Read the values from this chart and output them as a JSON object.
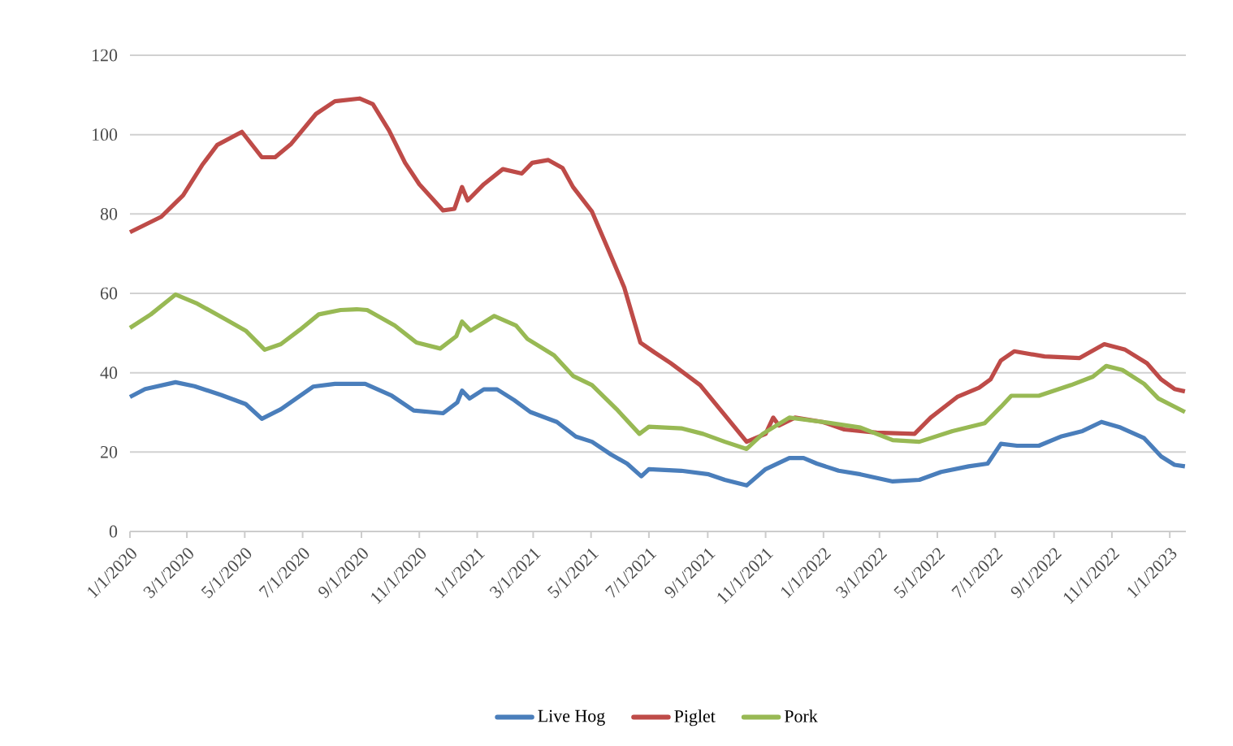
{
  "chart_data": {
    "type": "line",
    "xlim": [
      "2020-01-01",
      "2023-01-18"
    ],
    "ylim": [
      0,
      120
    ],
    "yticks": [
      0,
      20,
      40,
      60,
      80,
      100,
      120
    ],
    "xticks": [
      {
        "value": "2020-01-01",
        "label": "1/1/2020"
      },
      {
        "value": "2020-03-01",
        "label": "3/1/2020"
      },
      {
        "value": "2020-05-01",
        "label": "5/1/2020"
      },
      {
        "value": "2020-07-01",
        "label": "7/1/2020"
      },
      {
        "value": "2020-09-01",
        "label": "9/1/2020"
      },
      {
        "value": "2020-11-01",
        "label": "11/1/2020"
      },
      {
        "value": "2021-01-01",
        "label": "1/1/2021"
      },
      {
        "value": "2021-03-01",
        "label": "3/1/2021"
      },
      {
        "value": "2021-05-01",
        "label": "5/1/2021"
      },
      {
        "value": "2021-07-01",
        "label": "7/1/2021"
      },
      {
        "value": "2021-09-01",
        "label": "9/1/2021"
      },
      {
        "value": "2021-11-01",
        "label": "11/1/2021"
      },
      {
        "value": "2022-01-01",
        "label": "1/1/2022"
      },
      {
        "value": "2022-03-01",
        "label": "3/1/2022"
      },
      {
        "value": "2022-05-01",
        "label": "5/1/2022"
      },
      {
        "value": "2022-07-01",
        "label": "7/1/2022"
      },
      {
        "value": "2022-09-01",
        "label": "9/1/2022"
      },
      {
        "value": "2022-11-01",
        "label": "11/1/2022"
      },
      {
        "value": "2023-01-01",
        "label": "1/1/2023"
      }
    ],
    "grid": "y",
    "legend": "bottom",
    "marker": "none",
    "line_style": "solid",
    "series": [
      {
        "name": "Live Hog",
        "color": "#4a7ebb",
        "x": [
          "2020-01-01",
          "2020-01-17",
          "2020-02-18",
          "2020-03-09",
          "2020-04-06",
          "2020-05-02",
          "2020-05-19",
          "2020-06-08",
          "2020-07-12",
          "2020-08-04",
          "2020-09-05",
          "2020-10-03",
          "2020-10-26",
          "2020-11-26",
          "2020-12-11",
          "2020-12-16",
          "2020-12-24",
          "2021-01-08",
          "2021-01-22",
          "2021-02-09",
          "2021-02-26",
          "2021-03-26",
          "2021-04-15",
          "2021-05-02",
          "2021-05-22",
          "2021-06-08",
          "2021-06-23",
          "2021-07-01",
          "2021-08-04",
          "2021-09-02",
          "2021-09-19",
          "2021-10-12",
          "2021-11-01",
          "2021-11-26",
          "2021-12-11",
          "2021-12-25",
          "2022-01-17",
          "2022-02-09",
          "2022-03-15",
          "2022-04-12",
          "2022-05-05",
          "2022-06-03",
          "2022-06-23",
          "2022-07-07",
          "2022-07-24",
          "2022-08-16",
          "2022-09-08",
          "2022-10-01",
          "2022-10-21",
          "2022-11-10",
          "2022-12-05",
          "2022-12-23",
          "2023-01-06",
          "2023-01-17"
        ],
        "values": [
          33.9,
          35.9,
          37.6,
          36.6,
          34.4,
          32.1,
          28.4,
          30.8,
          36.5,
          37.2,
          37.2,
          34.2,
          30.5,
          29.8,
          32.5,
          35.5,
          33.5,
          35.8,
          35.8,
          33.1,
          30.1,
          27.6,
          23.9,
          22.6,
          19.4,
          17.1,
          13.9,
          15.7,
          15.3,
          14.4,
          13.0,
          11.6,
          15.7,
          18.5,
          18.5,
          17.1,
          15.3,
          14.4,
          12.6,
          13.0,
          15.0,
          16.4,
          17.1,
          22.1,
          21.6,
          21.6,
          23.9,
          25.3,
          27.6,
          26.2,
          23.5,
          18.9,
          16.8,
          16.4
        ]
      },
      {
        "name": "Piglet",
        "color": "#be4b48",
        "x": [
          "2020-01-01",
          "2020-02-03",
          "2020-02-26",
          "2020-03-17",
          "2020-04-02",
          "2020-04-28",
          "2020-05-19",
          "2020-06-02",
          "2020-06-19",
          "2020-07-15",
          "2020-08-04",
          "2020-08-30",
          "2020-09-13",
          "2020-09-30",
          "2020-10-17",
          "2020-11-01",
          "2020-11-26",
          "2020-12-08",
          "2020-12-16",
          "2020-12-22",
          "2021-01-08",
          "2021-01-28",
          "2021-02-17",
          "2021-02-28",
          "2021-03-17",
          "2021-04-01",
          "2021-04-12",
          "2021-05-02",
          "2021-05-19",
          "2021-06-05",
          "2021-06-22",
          "2021-07-07",
          "2021-07-24",
          "2021-08-24",
          "2021-10-12",
          "2021-11-01",
          "2021-11-09",
          "2021-11-15",
          "2021-12-02",
          "2021-12-31",
          "2022-01-23",
          "2022-02-26",
          "2022-04-07",
          "2022-04-24",
          "2022-05-22",
          "2022-06-14",
          "2022-06-26",
          "2022-07-07",
          "2022-07-21",
          "2022-08-22",
          "2022-09-28",
          "2022-10-24",
          "2022-11-15",
          "2022-12-08",
          "2022-12-23",
          "2023-01-06",
          "2023-01-17"
        ],
        "values": [
          75.4,
          79.3,
          84.7,
          92.3,
          97.4,
          100.7,
          94.3,
          94.3,
          97.7,
          105.2,
          108.4,
          109.1,
          107.7,
          101.1,
          92.9,
          87.5,
          80.9,
          81.3,
          86.8,
          83.4,
          87.5,
          91.3,
          90.2,
          92.9,
          93.6,
          91.6,
          86.8,
          80.6,
          71.1,
          61.5,
          47.6,
          45.1,
          42.4,
          36.9,
          22.6,
          24.6,
          28.7,
          26.7,
          28.7,
          27.6,
          25.7,
          24.9,
          24.6,
          28.7,
          33.9,
          36.2,
          38.3,
          43.1,
          45.4,
          44.1,
          43.7,
          47.2,
          45.8,
          42.4,
          38.3,
          35.9,
          35.3
        ]
      },
      {
        "name": "Pork",
        "color": "#98b954",
        "x": [
          "2020-01-01",
          "2020-01-23",
          "2020-02-18",
          "2020-03-12",
          "2020-04-12",
          "2020-05-02",
          "2020-05-22",
          "2020-06-08",
          "2020-06-28",
          "2020-07-18",
          "2020-08-10",
          "2020-08-27",
          "2020-09-07",
          "2020-10-06",
          "2020-10-29",
          "2020-11-23",
          "2020-12-10",
          "2020-12-16",
          "2020-12-25",
          "2021-01-19",
          "2021-02-11",
          "2021-02-23",
          "2021-03-23",
          "2021-04-12",
          "2021-05-02",
          "2021-05-28",
          "2021-06-21",
          "2021-07-01",
          "2021-08-04",
          "2021-08-27",
          "2021-09-19",
          "2021-10-12",
          "2021-10-29",
          "2021-11-26",
          "2021-12-31",
          "2022-02-09",
          "2022-03-15",
          "2022-04-12",
          "2022-05-17",
          "2022-06-20",
          "2022-07-07",
          "2022-07-18",
          "2022-08-16",
          "2022-09-19",
          "2022-10-12",
          "2022-10-26",
          "2022-11-12",
          "2022-12-05",
          "2022-12-20",
          "2023-01-17"
        ],
        "values": [
          51.3,
          54.7,
          59.7,
          57.4,
          53.3,
          50.6,
          45.8,
          47.2,
          50.8,
          54.7,
          55.8,
          56.0,
          55.8,
          51.9,
          47.6,
          46.1,
          49.2,
          52.9,
          50.6,
          54.3,
          51.9,
          48.5,
          44.4,
          39.2,
          36.9,
          30.8,
          24.6,
          26.4,
          26.0,
          24.6,
          22.6,
          20.8,
          24.6,
          28.7,
          27.6,
          26.2,
          23.0,
          22.6,
          25.3,
          27.3,
          31.4,
          34.2,
          34.2,
          36.9,
          39.0,
          41.7,
          40.7,
          37.2,
          33.5,
          30.1
        ]
      }
    ]
  }
}
